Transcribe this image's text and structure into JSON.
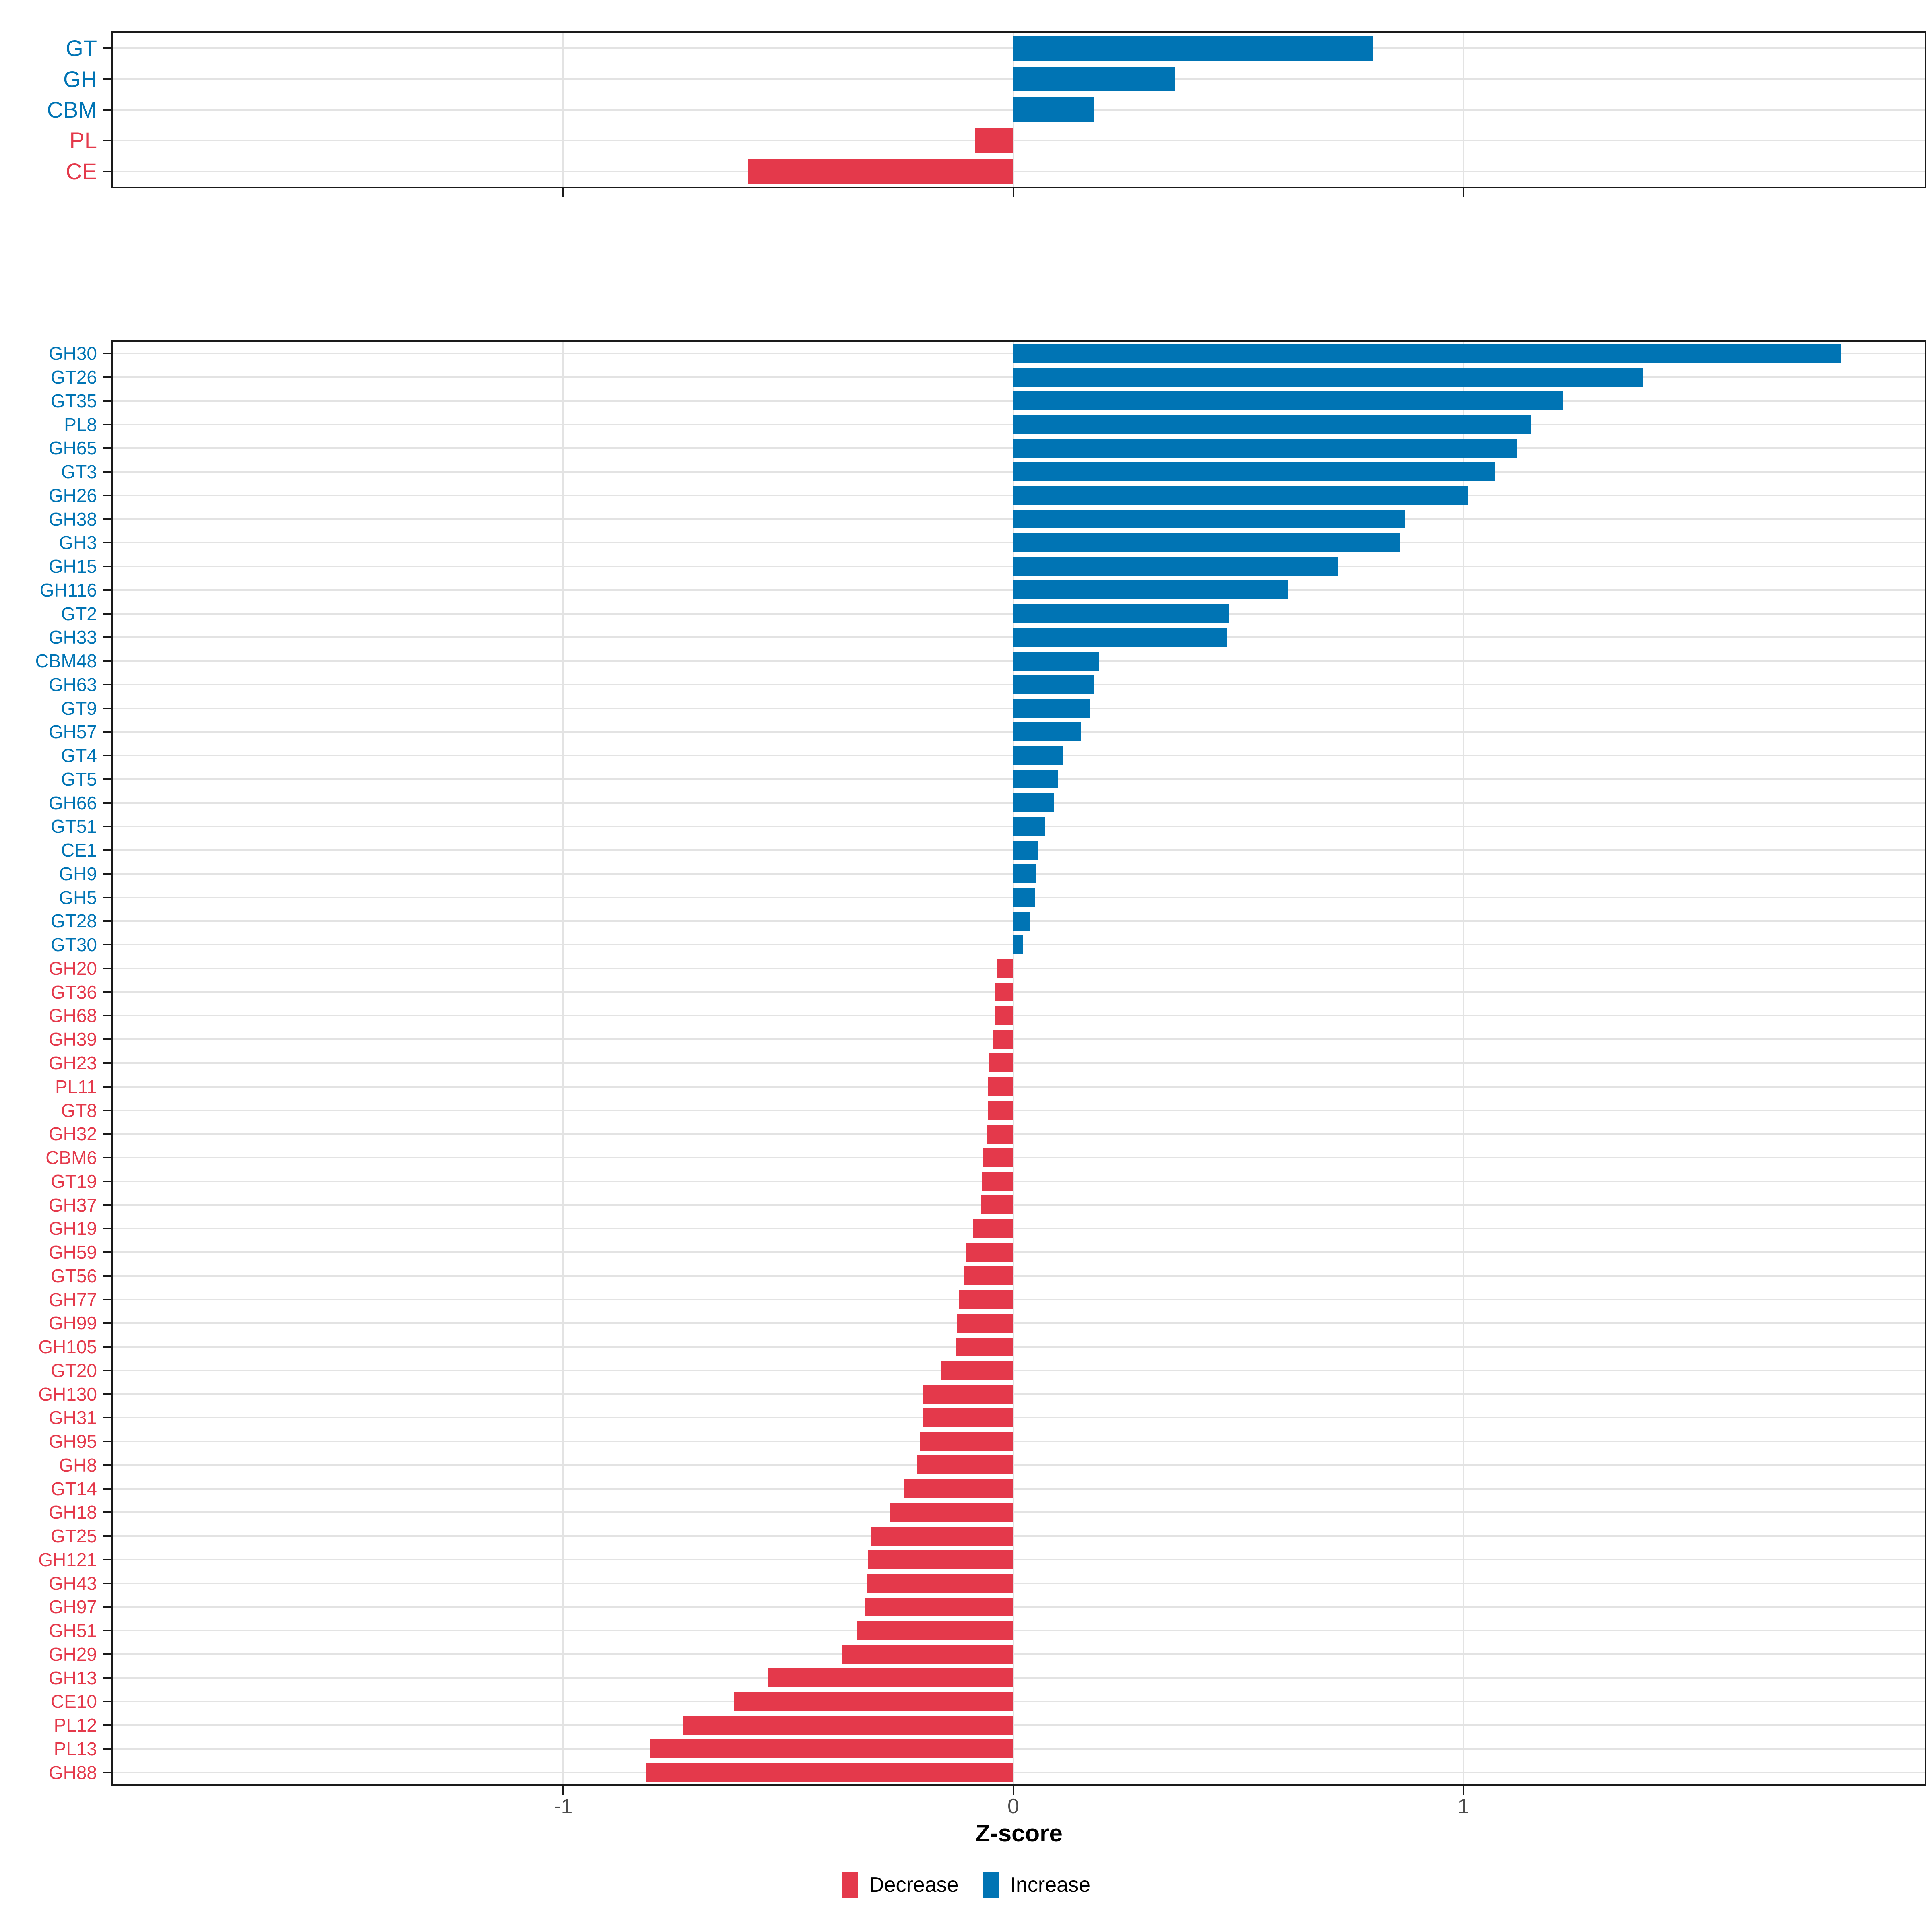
{
  "chart_data": {
    "type": "bar",
    "orientation": "horizontal",
    "title": "",
    "xlabel": "Z-score",
    "ylabel": "",
    "x_range": [
      -2.0,
      2.025
    ],
    "x_ticks": [
      -1,
      0,
      1
    ],
    "x_tick_labels": [
      "-1",
      "0",
      "1"
    ],
    "grid": true,
    "legend_position": "bottom",
    "colors": {
      "increase": "#0074B4",
      "decrease": "#E4394B"
    },
    "legend": [
      {
        "label": "Decrease",
        "key": "decrease"
      },
      {
        "label": "Increase",
        "key": "increase"
      }
    ],
    "panels": [
      {
        "name": "cazyme-class-summary",
        "categories": [
          "GT",
          "GH",
          "CBM",
          "PL",
          "CE"
        ],
        "values": [
          0.8,
          0.36,
          0.18,
          -0.085,
          -0.59
        ]
      },
      {
        "name": "cazyme-family-detail",
        "categories": [
          "GH30",
          "GT26",
          "GT35",
          "PL8",
          "GH65",
          "GT3",
          "GH26",
          "GH38",
          "GH3",
          "GH15",
          "GH116",
          "GT2",
          "GH33",
          "CBM48",
          "GH63",
          "GT9",
          "GH57",
          "GT4",
          "GT5",
          "GH66",
          "GT51",
          "CE1",
          "GH9",
          "GH5",
          "GT28",
          "GT30",
          "GH20",
          "GT36",
          "GH68",
          "GH39",
          "GH23",
          "PL11",
          "GT8",
          "GH32",
          "CBM6",
          "GT19",
          "GH37",
          "GH19",
          "GH59",
          "GT56",
          "GH77",
          "GH99",
          "GH105",
          "GT20",
          "GH130",
          "GH31",
          "GH95",
          "GH8",
          "GT14",
          "GH18",
          "GT25",
          "GH121",
          "GH43",
          "GH97",
          "GH51",
          "GH29",
          "GH13",
          "CE10",
          "PL12",
          "PL13",
          "GH88"
        ],
        "values": [
          1.84,
          1.4,
          1.22,
          1.15,
          1.12,
          1.07,
          1.01,
          0.87,
          0.86,
          0.72,
          0.61,
          0.48,
          0.475,
          0.19,
          0.18,
          0.17,
          0.15,
          0.11,
          0.1,
          0.09,
          0.07,
          0.055,
          0.05,
          0.048,
          0.037,
          0.022,
          -0.035,
          -0.04,
          -0.042,
          -0.044,
          -0.054,
          -0.056,
          -0.057,
          -0.058,
          -0.068,
          -0.07,
          -0.071,
          -0.089,
          -0.105,
          -0.11,
          -0.12,
          -0.125,
          -0.128,
          -0.16,
          -0.2,
          -0.201,
          -0.208,
          -0.213,
          -0.243,
          -0.273,
          -0.317,
          -0.323,
          -0.326,
          -0.329,
          -0.348,
          -0.38,
          -0.545,
          -0.62,
          -0.735,
          -0.806,
          -0.815
        ]
      }
    ]
  }
}
